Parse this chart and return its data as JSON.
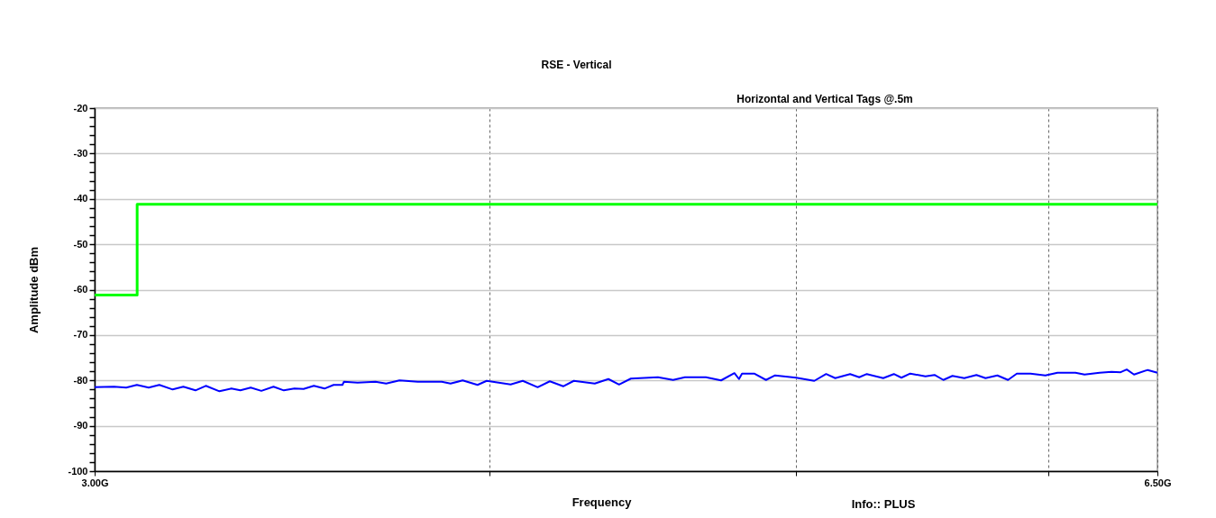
{
  "chart_data": {
    "type": "line",
    "title": "RSE - Vertical",
    "subtitle": "Horizontal and Vertical Tags @.5m",
    "xlabel": "Frequency",
    "ylabel": "Amplitude dBm",
    "annotations": [
      "Info:: PLUS"
    ],
    "xlim": [
      3.0,
      6.5
    ],
    "xticks": [
      {
        "value": 3.0,
        "label": "3.00G"
      },
      {
        "value": 4.3,
        "label": null
      },
      {
        "value": 5.31,
        "label": null
      },
      {
        "value": 6.14,
        "label": null
      },
      {
        "value": 6.5,
        "label": "6.50G"
      }
    ],
    "ylim": [
      -100,
      -20
    ],
    "yticks": [
      -100,
      {
        "value": -98,
        "label": null
      },
      {
        "value": -96,
        "label": null
      },
      {
        "value": -94,
        "label": null
      },
      {
        "value": -92,
        "label": null
      },
      -90,
      {
        "value": -88,
        "label": null
      },
      {
        "value": -86,
        "label": null
      },
      {
        "value": -84,
        "label": null
      },
      {
        "value": -82,
        "label": null
      },
      -80,
      {
        "value": -78,
        "label": null
      },
      {
        "value": -76,
        "label": null
      },
      {
        "value": -74,
        "label": null
      },
      {
        "value": -72,
        "label": null
      },
      -70,
      {
        "value": -68,
        "label": null
      },
      {
        "value": -66,
        "label": null
      },
      {
        "value": -64,
        "label": null
      },
      {
        "value": -62,
        "label": null
      },
      -60,
      {
        "value": -58,
        "label": null
      },
      {
        "value": -56,
        "label": null
      },
      {
        "value": -54,
        "label": null
      },
      {
        "value": -52,
        "label": null
      },
      -50,
      {
        "value": -48,
        "label": null
      },
      {
        "value": -46,
        "label": null
      },
      {
        "value": -44,
        "label": null
      },
      {
        "value": -42,
        "label": null
      },
      -40,
      {
        "value": -38,
        "label": null
      },
      {
        "value": -36,
        "label": null
      },
      {
        "value": -34,
        "label": null
      },
      {
        "value": -32,
        "label": null
      },
      -30,
      {
        "value": -28,
        "label": null
      },
      {
        "value": -26,
        "label": null
      },
      {
        "value": -24,
        "label": null
      },
      {
        "value": -22,
        "label": null
      },
      -20
    ],
    "grid": true,
    "legend": false,
    "series": [
      {
        "type": "step",
        "color": "#00ff00",
        "x": [
          3.0,
          3.14,
          6.5
        ],
        "values": [
          -61.2,
          -41.2,
          -41.2
        ]
      },
      {
        "type": "line",
        "color": "#0000ff",
        "x": [
          3.0,
          3.064,
          3.104,
          3.139,
          3.178,
          3.213,
          3.257,
          3.292,
          3.332,
          3.366,
          3.411,
          3.45,
          3.48,
          3.514,
          3.549,
          3.589,
          3.623,
          3.658,
          3.688,
          3.722,
          3.757,
          3.787,
          3.816,
          3.821,
          3.866,
          3.925,
          3.96,
          4.004,
          4.064,
          4.143,
          4.172,
          4.212,
          4.261,
          4.291,
          4.37,
          4.41,
          4.459,
          4.499,
          4.543,
          4.578,
          4.647,
          4.692,
          4.727,
          4.766,
          4.855,
          4.905,
          4.944,
          5.013,
          5.063,
          5.107,
          5.122,
          5.132,
          5.172,
          5.211,
          5.241,
          5.31,
          5.37,
          5.409,
          5.439,
          5.488,
          5.518,
          5.543,
          5.597,
          5.632,
          5.657,
          5.686,
          5.736,
          5.766,
          5.795,
          5.825,
          5.864,
          5.904,
          5.934,
          5.973,
          6.008,
          6.037,
          6.082,
          6.131,
          6.171,
          6.23,
          6.26,
          6.31,
          6.349,
          6.379,
          6.399,
          6.423,
          6.468,
          6.5
        ],
        "values": [
          -81.5,
          -81.4,
          -81.6,
          -81.0,
          -81.6,
          -81.0,
          -82.0,
          -81.4,
          -82.2,
          -81.2,
          -82.4,
          -81.8,
          -82.2,
          -81.6,
          -82.3,
          -81.4,
          -82.2,
          -81.8,
          -81.9,
          -81.2,
          -81.8,
          -81.0,
          -81.0,
          -80.3,
          -80.5,
          -80.3,
          -80.7,
          -80.0,
          -80.3,
          -80.3,
          -80.7,
          -80.0,
          -81.0,
          -80.1,
          -80.9,
          -80.1,
          -81.5,
          -80.2,
          -81.3,
          -80.1,
          -80.7,
          -79.7,
          -80.9,
          -79.6,
          -79.3,
          -79.9,
          -79.3,
          -79.3,
          -80.0,
          -78.4,
          -79.7,
          -78.5,
          -78.5,
          -79.9,
          -78.9,
          -79.4,
          -80.1,
          -78.6,
          -79.5,
          -78.6,
          -79.3,
          -78.6,
          -79.5,
          -78.6,
          -79.4,
          -78.5,
          -79.1,
          -78.8,
          -79.9,
          -79.0,
          -79.5,
          -78.8,
          -79.5,
          -78.9,
          -79.9,
          -78.5,
          -78.5,
          -78.9,
          -78.3,
          -78.3,
          -78.7,
          -78.3,
          -78.1,
          -78.2,
          -77.6,
          -78.7,
          -77.7,
          -78.3
        ]
      }
    ]
  }
}
